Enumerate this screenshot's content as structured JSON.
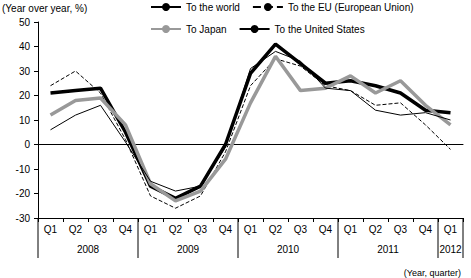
{
  "chart_data": {
    "type": "line",
    "y_label": "(Year over year, %)",
    "x_label": "(Year, quarter)",
    "categories": [
      "Q1",
      "Q2",
      "Q3",
      "Q4",
      "Q1",
      "Q2",
      "Q3",
      "Q4",
      "Q1",
      "Q2",
      "Q3",
      "Q4",
      "Q1",
      "Q2",
      "Q3",
      "Q4",
      "Q1"
    ],
    "category_groups": [
      {
        "label": "2008",
        "count": 4
      },
      {
        "label": "2009",
        "count": 4
      },
      {
        "label": "2010",
        "count": 4
      },
      {
        "label": "2011",
        "count": 4
      },
      {
        "label": "2012",
        "count": 1
      }
    ],
    "series": [
      {
        "name": "To the world",
        "color": "#000000",
        "line_style": "solid",
        "values": [
          21,
          22,
          23,
          5,
          -17,
          -22,
          -17,
          0,
          29,
          41,
          33,
          25,
          26,
          24,
          21,
          14,
          13
        ]
      },
      {
        "name": "To the EU (European Union)",
        "color": "#000000",
        "line_style": "dashed",
        "values": [
          24,
          30,
          21,
          2,
          -21,
          -26,
          -21,
          -3,
          24,
          35,
          32,
          24,
          22,
          16,
          17,
          8,
          -2
        ]
      },
      {
        "name": "To Japan",
        "color": "#999999",
        "line_style": "solid",
        "values": [
          12,
          18,
          19,
          8,
          -16,
          -23,
          -19,
          -6,
          17,
          36,
          22,
          23,
          28,
          21,
          26,
          16,
          8
        ]
      },
      {
        "name": "To the United States",
        "color": "#000000",
        "line_style": "solid",
        "values": [
          6,
          12,
          16,
          1,
          -15,
          -19,
          -17,
          -1,
          31,
          38,
          34,
          23,
          22,
          14,
          12,
          13,
          10
        ]
      }
    ],
    "ylim": [
      -30,
      50
    ],
    "yticks": [
      -30,
      -20,
      -10,
      0,
      10,
      20,
      30,
      40,
      50
    ],
    "grid": false,
    "legend": "top"
  }
}
